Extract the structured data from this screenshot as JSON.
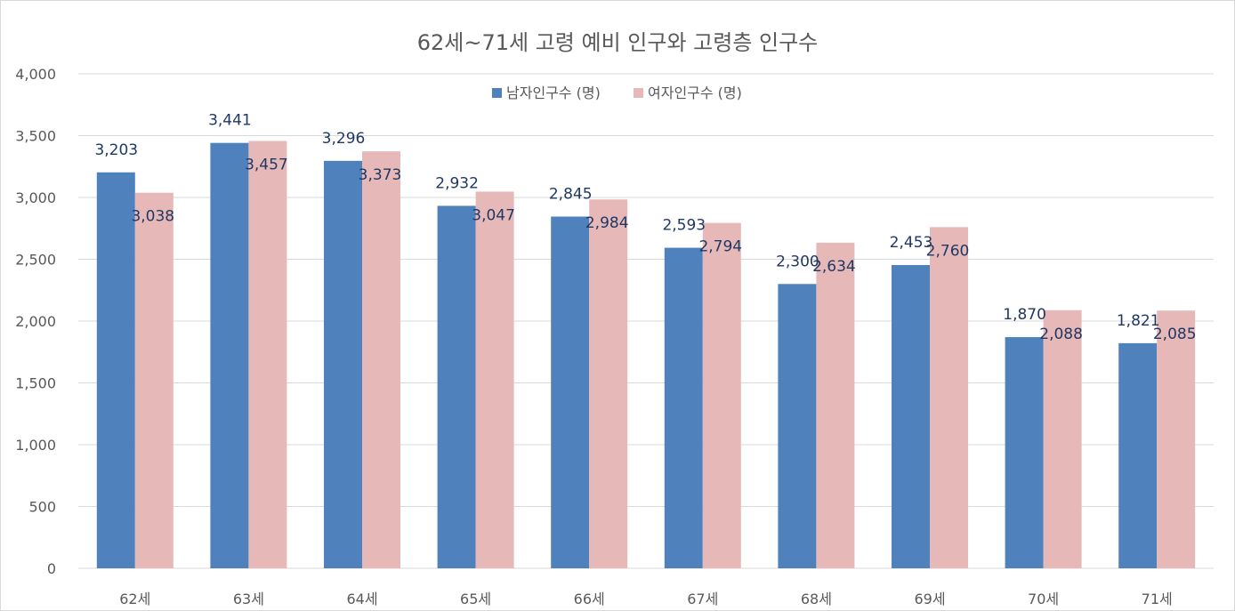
{
  "chart_data": {
    "type": "bar",
    "title": "62세~71세 고령 예비 인구와 고령층 인구수",
    "categories": [
      "62세",
      "63세",
      "64세",
      "65세",
      "66세",
      "67세",
      "68세",
      "69세",
      "70세",
      "71세"
    ],
    "series": [
      {
        "name": "남자인구수 (명)",
        "color": "#4f81bd",
        "values": [
          3203,
          3441,
          3296,
          2932,
          2845,
          2593,
          2300,
          2453,
          1870,
          1821
        ]
      },
      {
        "name": "여자인구수 (명)",
        "color": "#e6b9b8",
        "values": [
          3038,
          3457,
          3373,
          3047,
          2984,
          2794,
          2634,
          2760,
          2088,
          2085
        ]
      }
    ],
    "data_labels": [
      [
        "3,203",
        "3,441",
        "3,296",
        "2,932",
        "2,845",
        "2,593",
        "2,300",
        "2,453",
        "1,870",
        "1,821"
      ],
      [
        "3,038",
        "3,457",
        "3,373",
        "3,047",
        "2,984",
        "2,794",
        "2,634",
        "2,760",
        "2,088",
        "2,085"
      ]
    ],
    "ylim": [
      0,
      4000
    ],
    "yticks": [
      0,
      500,
      1000,
      1500,
      2000,
      2500,
      3000,
      3500,
      4000
    ],
    "ytick_labels": [
      "0",
      "500",
      "1,000",
      "1,500",
      "2,000",
      "2,500",
      "3,000",
      "3,500",
      "4,000"
    ],
    "xlabel": "",
    "ylabel": "",
    "grid": true,
    "legend": "top-center"
  }
}
